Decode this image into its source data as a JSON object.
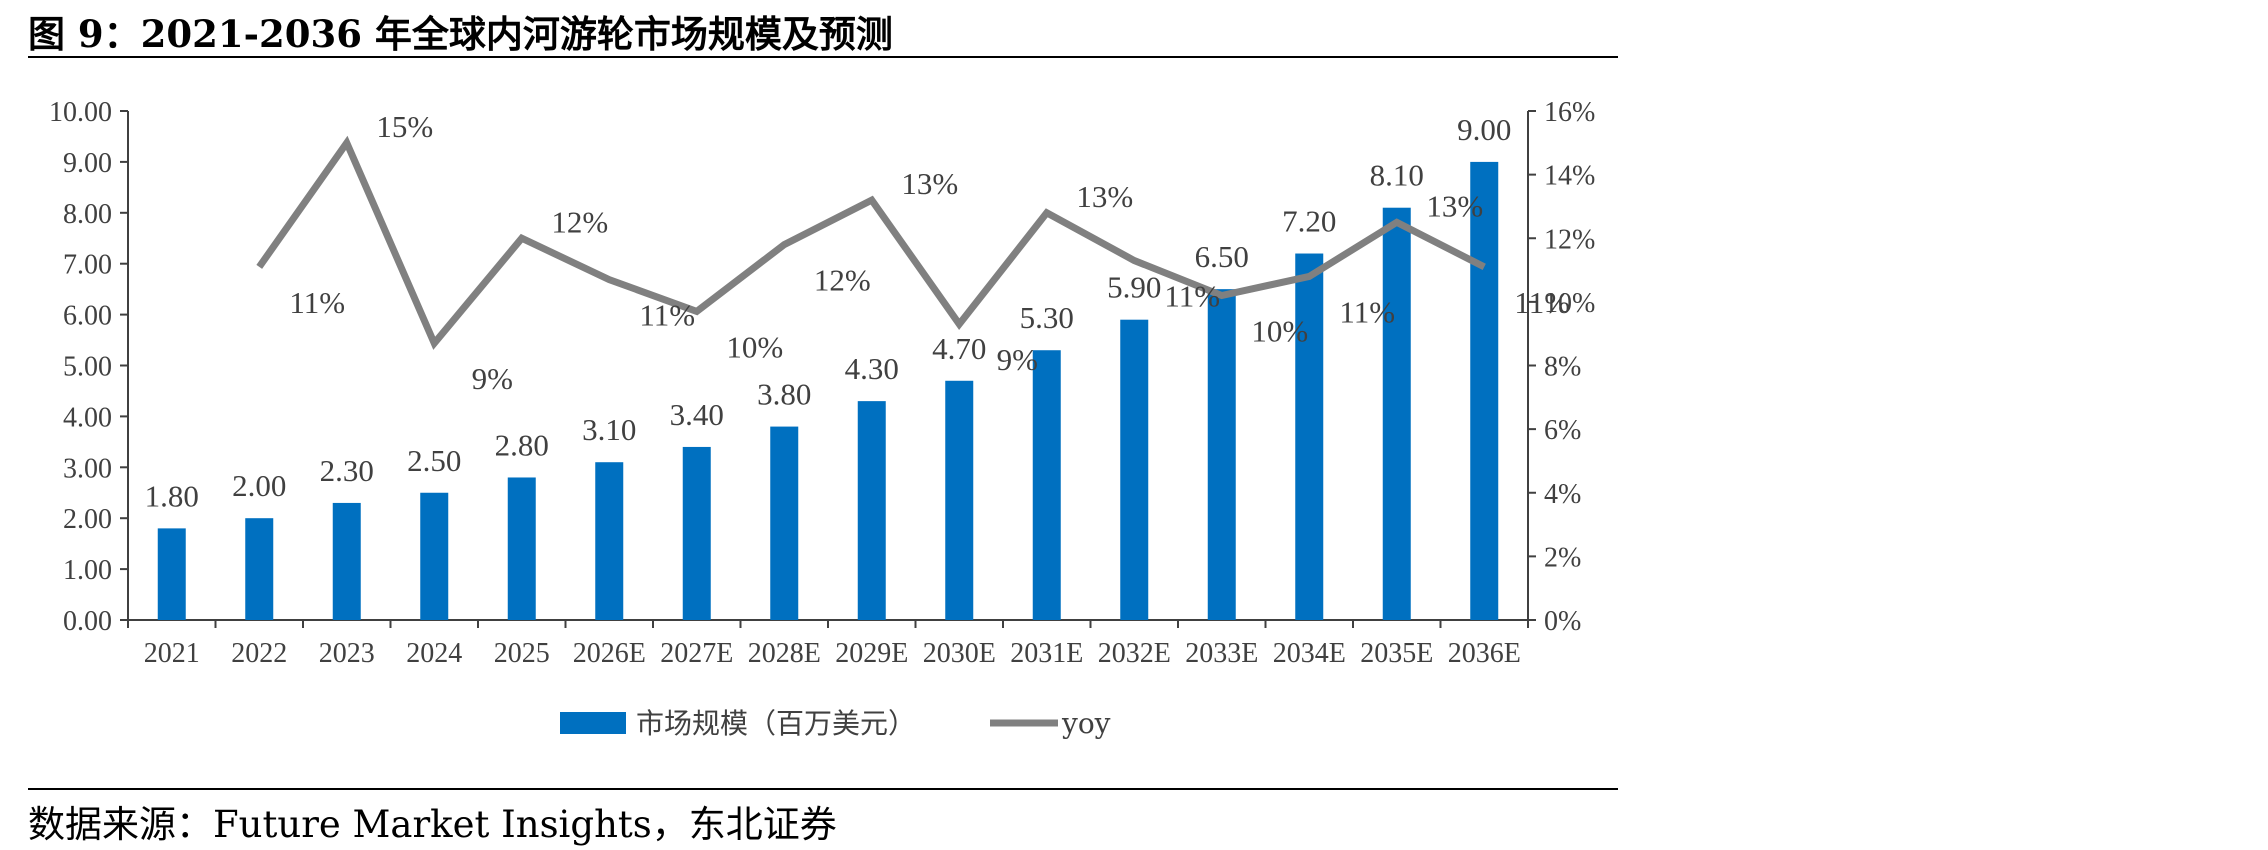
{
  "figure": {
    "title": "图 9：2021-2036 年全球内河游轮市场规模及预测",
    "source": "数据来源：Future Market Insights，东北证券"
  },
  "chart_data": {
    "type": "bar",
    "categories": [
      "2021",
      "2022",
      "2023",
      "2024",
      "2025",
      "2026E",
      "2027E",
      "2028E",
      "2029E",
      "2030E",
      "2031E",
      "2032E",
      "2033E",
      "2034E",
      "2035E",
      "2036E"
    ],
    "series": [
      {
        "name": "市场规模（百万美元）",
        "type": "bar",
        "axis": "left",
        "values": [
          1.8,
          2.0,
          2.3,
          2.5,
          2.8,
          3.1,
          3.4,
          3.8,
          4.3,
          4.7,
          5.3,
          5.9,
          6.5,
          7.2,
          8.1,
          9.0
        ],
        "labels": [
          "1.80",
          "2.00",
          "2.30",
          "2.50",
          "2.80",
          "3.10",
          "3.40",
          "3.80",
          "4.30",
          "4.70",
          "5.30",
          "5.90",
          "6.50",
          "7.20",
          "8.10",
          "9.00"
        ],
        "color": "#0070C0"
      },
      {
        "name": "yoy",
        "type": "line",
        "axis": "right",
        "values": [
          null,
          11.1,
          15.0,
          8.7,
          12.0,
          10.7,
          9.7,
          11.8,
          13.2,
          9.3,
          12.8,
          11.3,
          10.2,
          10.8,
          12.5,
          11.1
        ],
        "labels": [
          "",
          "11%",
          "15%",
          "9%",
          "12%",
          "11%",
          "10%",
          "12%",
          "13%",
          "9%",
          "13%",
          "11%",
          "10%",
          "11%",
          "13%",
          "11%"
        ],
        "color": "#808080"
      }
    ],
    "y_left": {
      "ylim": [
        0,
        10
      ],
      "ticks": [
        "0.00",
        "1.00",
        "2.00",
        "3.00",
        "4.00",
        "5.00",
        "6.00",
        "7.00",
        "8.00",
        "9.00",
        "10.00"
      ]
    },
    "y_right": {
      "ylim": [
        0,
        16
      ],
      "ticks": [
        "0%",
        "2%",
        "4%",
        "6%",
        "8%",
        "10%",
        "12%",
        "14%",
        "16%"
      ]
    },
    "grid": false,
    "legend": "bottom"
  }
}
